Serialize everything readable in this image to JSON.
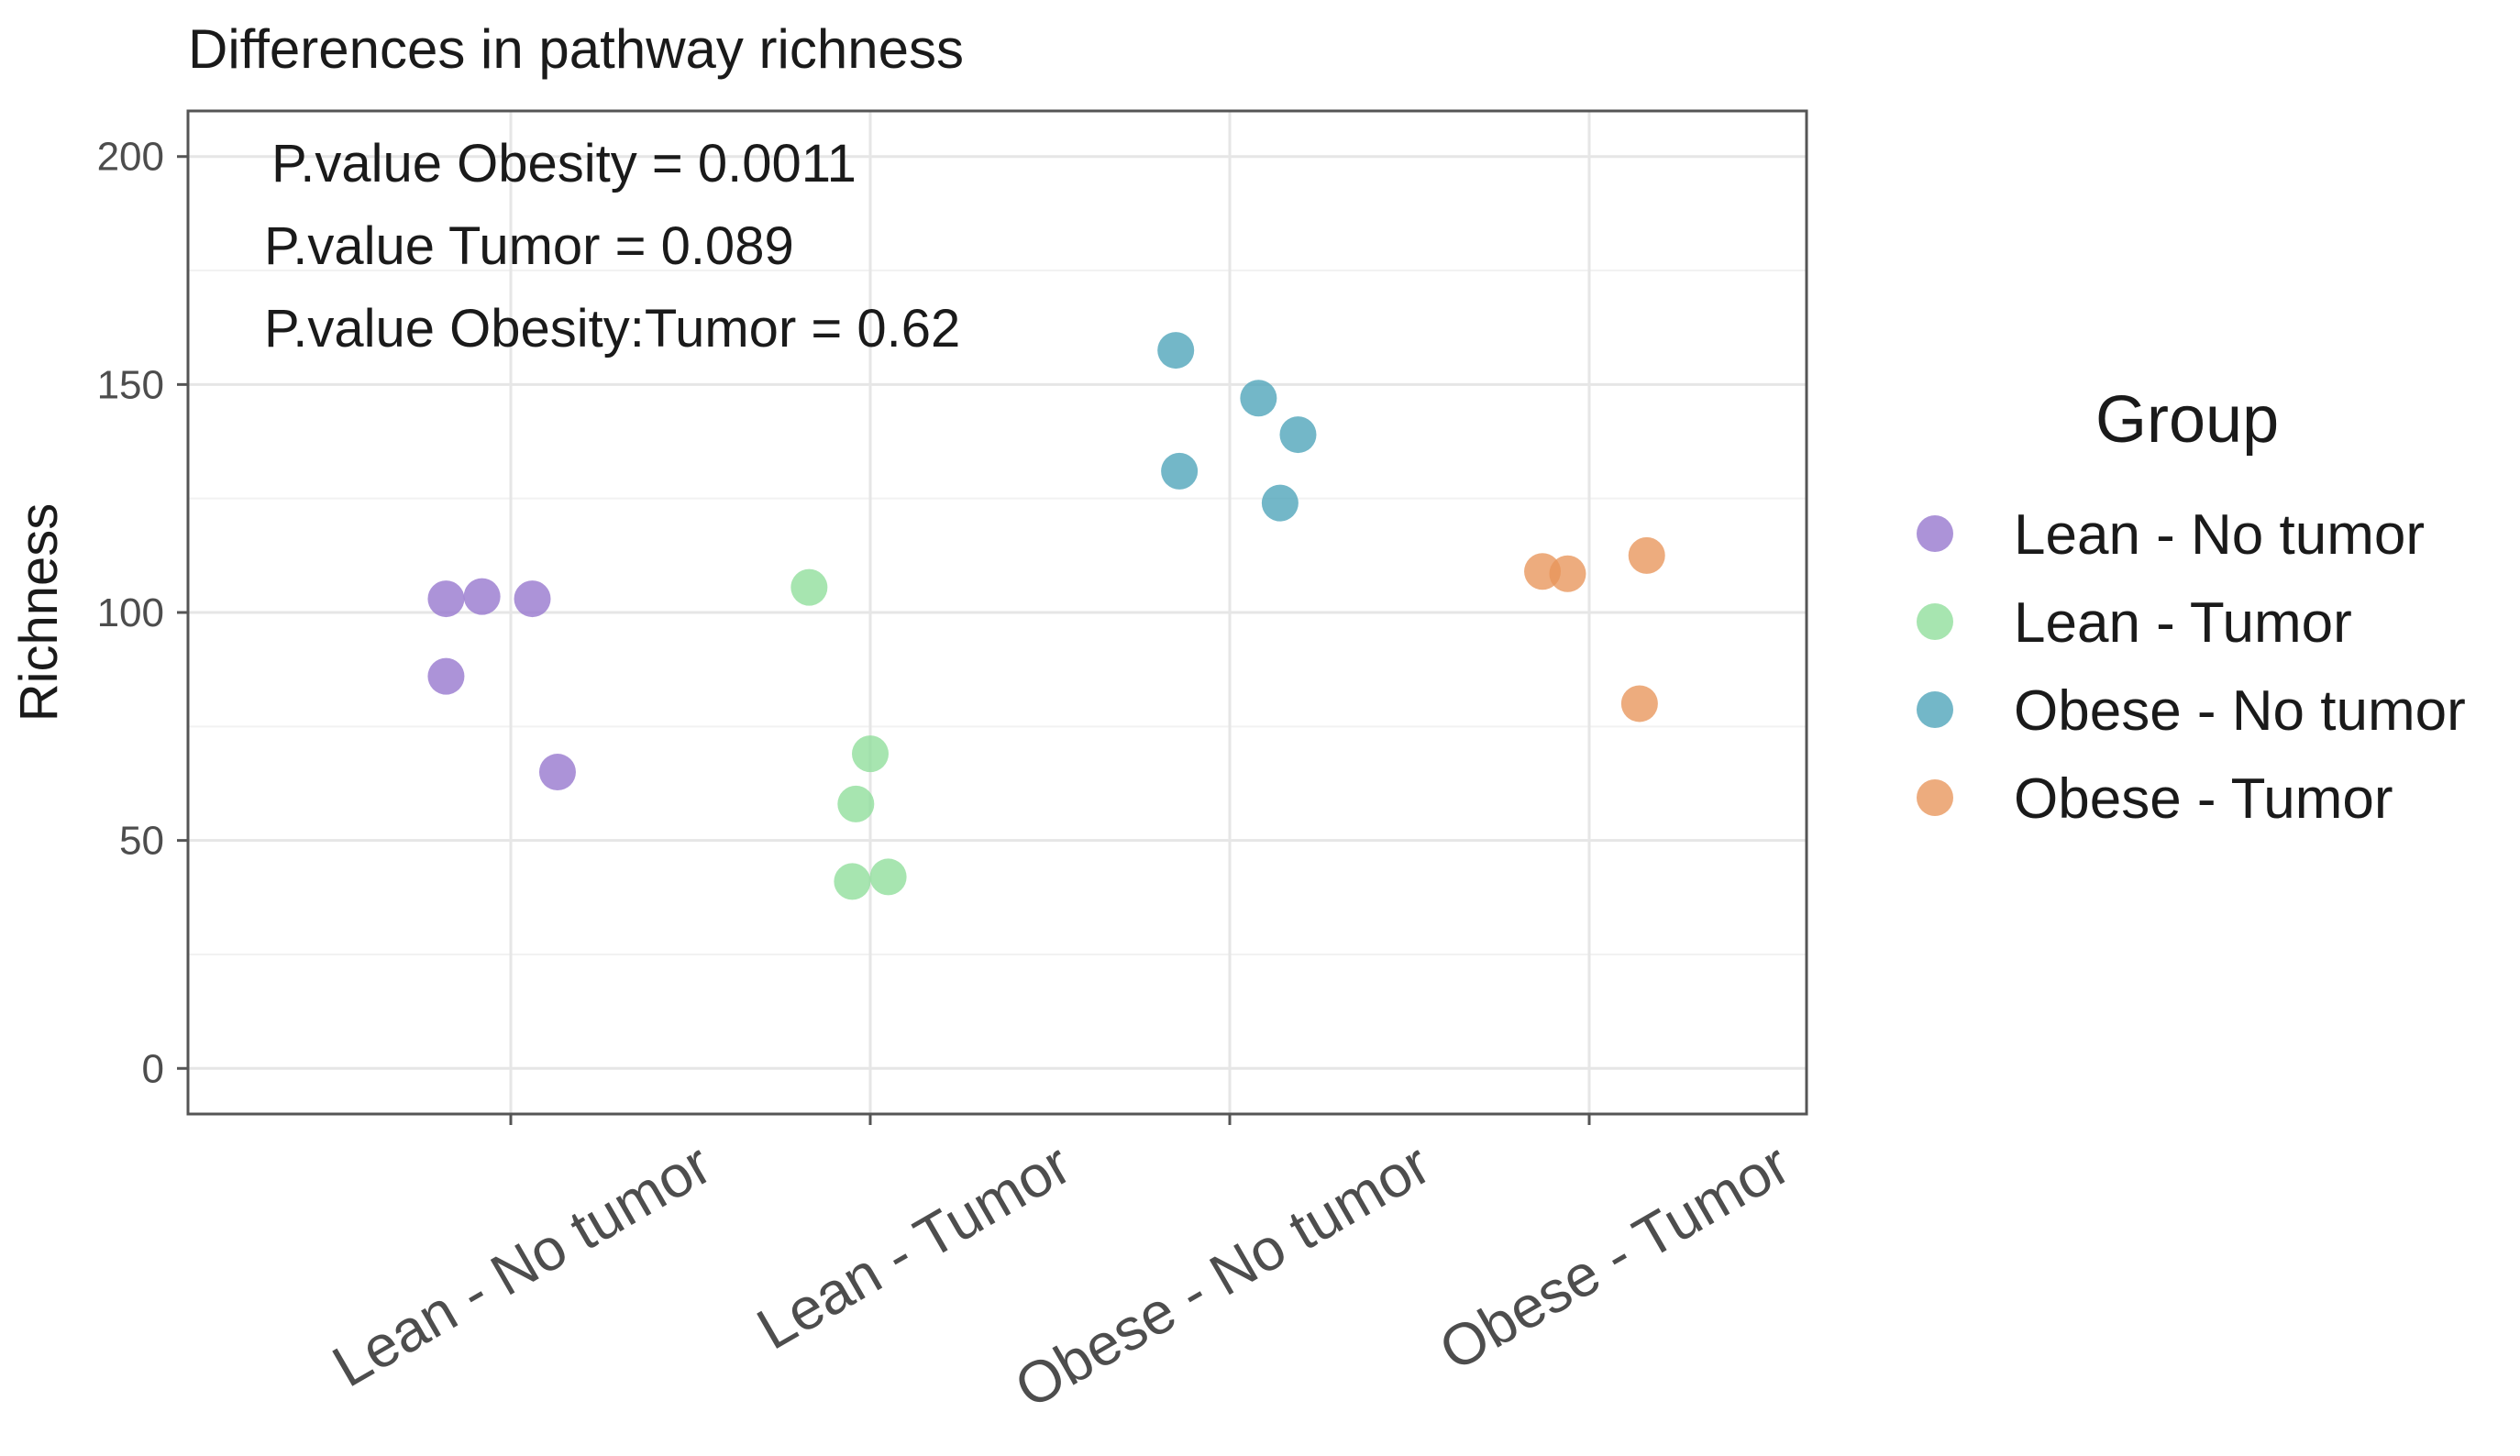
{
  "chart_data": {
    "type": "scatter",
    "title": "Differences in pathway richness",
    "xlabel": "",
    "ylabel": "Richness",
    "ylim": [
      -10,
      210
    ],
    "yticks": [
      0,
      50,
      100,
      150,
      200
    ],
    "categories": [
      "Lean - No tumor",
      "Lean - Tumor",
      "Obese - No tumor",
      "Obese - Tumor"
    ],
    "grid": true,
    "legend_position": "right",
    "legend_title": "Group",
    "annotations": [
      "P.value Obesity = 0.0011",
      "P.value Tumor = 0.089",
      "P.value Obesity:Tumor = 0.62"
    ],
    "series": [
      {
        "name": "Lean - No tumor",
        "color": "#9575CD",
        "points": [
          {
            "category": "Lean - No tumor",
            "jitter": -0.18,
            "value": 103
          },
          {
            "category": "Lean - No tumor",
            "jitter": -0.08,
            "value": 103.5
          },
          {
            "category": "Lean - No tumor",
            "jitter": 0.06,
            "value": 103
          },
          {
            "category": "Lean - No tumor",
            "jitter": -0.18,
            "value": 86
          },
          {
            "category": "Lean - No tumor",
            "jitter": 0.13,
            "value": 65
          }
        ]
      },
      {
        "name": "Lean - Tumor",
        "color": "#8EDE9A",
        "points": [
          {
            "category": "Lean - Tumor",
            "jitter": -0.17,
            "value": 105.5
          },
          {
            "category": "Lean - Tumor",
            "jitter": 0.0,
            "value": 69
          },
          {
            "category": "Lean - Tumor",
            "jitter": -0.04,
            "value": 58
          },
          {
            "category": "Lean - Tumor",
            "jitter": -0.05,
            "value": 41
          },
          {
            "category": "Lean - Tumor",
            "jitter": 0.05,
            "value": 42
          }
        ]
      },
      {
        "name": "Obese - No tumor",
        "color": "#4BA3B8",
        "points": [
          {
            "category": "Obese - No tumor",
            "jitter": -0.15,
            "value": 157.5
          },
          {
            "category": "Obese - No tumor",
            "jitter": 0.08,
            "value": 147
          },
          {
            "category": "Obese - No tumor",
            "jitter": 0.19,
            "value": 139
          },
          {
            "category": "Obese - No tumor",
            "jitter": -0.14,
            "value": 131
          },
          {
            "category": "Obese - No tumor",
            "jitter": 0.14,
            "value": 124
          }
        ]
      },
      {
        "name": "Obese - Tumor",
        "color": "#E8955A",
        "points": [
          {
            "category": "Obese - Tumor",
            "jitter": -0.13,
            "value": 109
          },
          {
            "category": "Obese - Tumor",
            "jitter": -0.06,
            "value": 108.5
          },
          {
            "category": "Obese - Tumor",
            "jitter": 0.16,
            "value": 112.5
          },
          {
            "category": "Obese - Tumor",
            "jitter": 0.14,
            "value": 80
          }
        ]
      }
    ]
  }
}
